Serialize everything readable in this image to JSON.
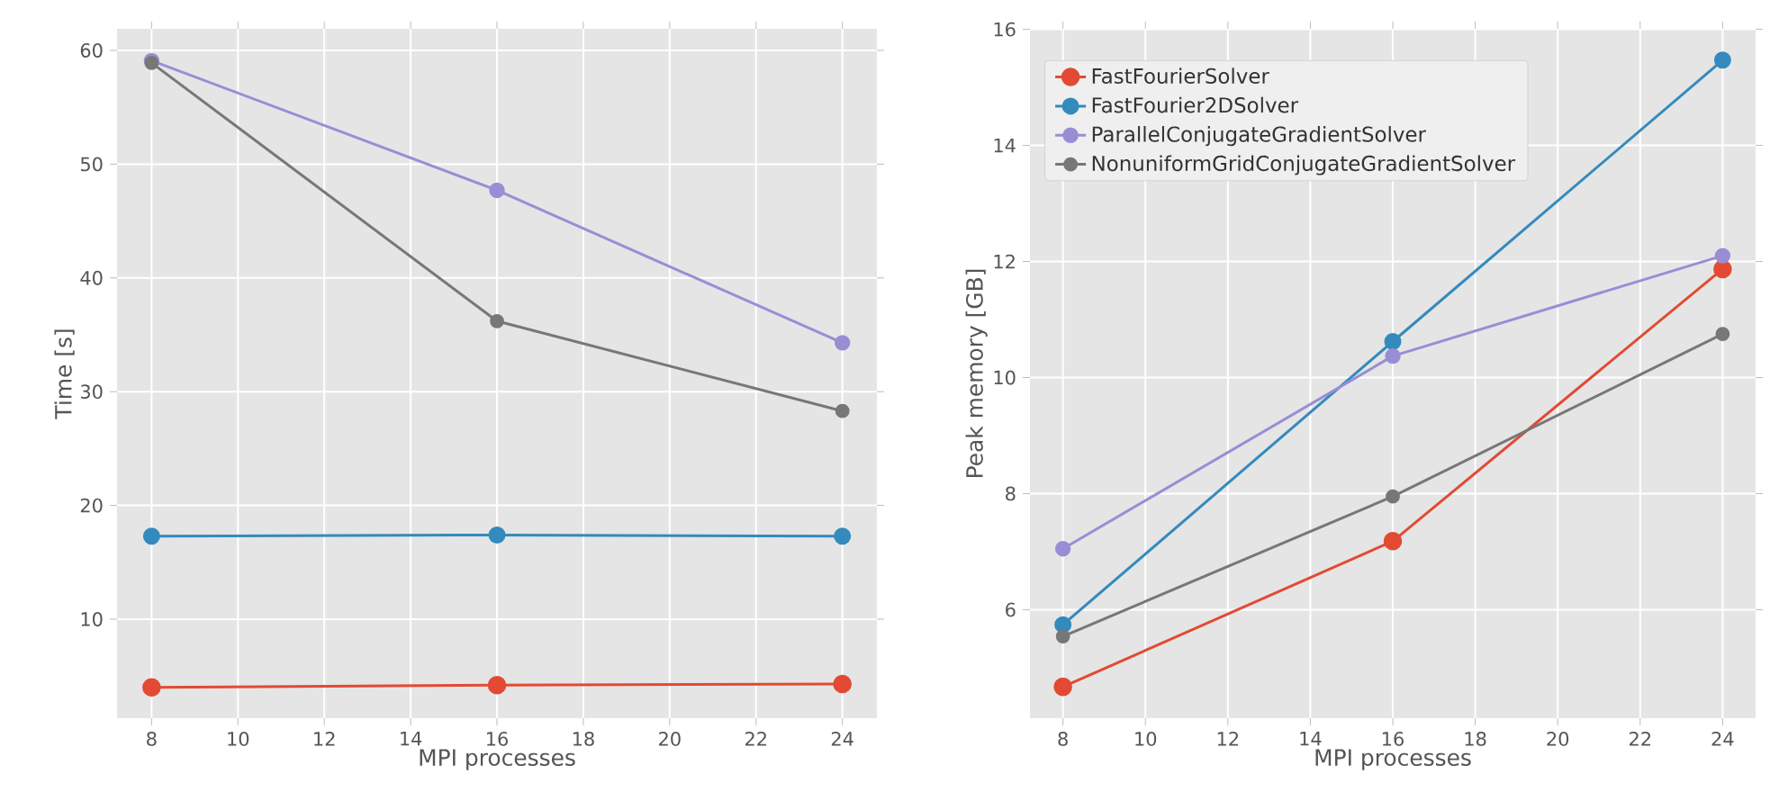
{
  "chart_data": [
    {
      "type": "line",
      "xlabel": "MPI processes",
      "ylabel": "Time [s]",
      "x": [
        8,
        16,
        24
      ],
      "xlim": [
        7.2,
        24.8
      ],
      "ylim": [
        1.3,
        61.9
      ],
      "xticks": [
        8,
        10,
        12,
        14,
        16,
        18,
        20,
        22,
        24
      ],
      "yticks": [
        10,
        20,
        30,
        40,
        50,
        60
      ],
      "grid": true,
      "marker": "circle",
      "line_style": "solid",
      "series": [
        {
          "color": "#e24a33",
          "values": [
            4.0,
            4.2,
            4.3
          ]
        },
        {
          "color": "#348abd",
          "values": [
            17.3,
            17.4,
            17.3
          ]
        },
        {
          "color": "#988ed5",
          "values": [
            59.1,
            47.7,
            34.3
          ]
        },
        {
          "color": "#777777",
          "values": [
            58.9,
            36.2,
            28.3
          ]
        }
      ]
    },
    {
      "type": "line",
      "xlabel": "MPI processes",
      "ylabel": "Peak memory [GB]",
      "x": [
        8,
        16,
        24
      ],
      "xlim": [
        7.2,
        24.8
      ],
      "ylim": [
        4.13,
        16.01
      ],
      "xticks": [
        8,
        10,
        12,
        14,
        16,
        18,
        20,
        22,
        24
      ],
      "yticks": [
        6,
        8,
        10,
        12,
        14,
        16
      ],
      "grid": true,
      "marker": "circle",
      "line_style": "solid",
      "legend": "top left",
      "series": [
        {
          "name": "FastFourierSolver",
          "color": "#e24a33",
          "values": [
            4.67,
            7.18,
            11.87
          ]
        },
        {
          "name": "FastFourier2DSolver",
          "color": "#348abd",
          "values": [
            5.74,
            10.62,
            15.47
          ]
        },
        {
          "name": "ParallelConjugateGradientSolver",
          "color": "#988ed5",
          "values": [
            7.05,
            10.37,
            12.1
          ]
        },
        {
          "name": "NonuniformGridConjugateGradientSolver",
          "color": "#777777",
          "values": [
            5.54,
            7.95,
            10.75
          ]
        }
      ]
    }
  ]
}
